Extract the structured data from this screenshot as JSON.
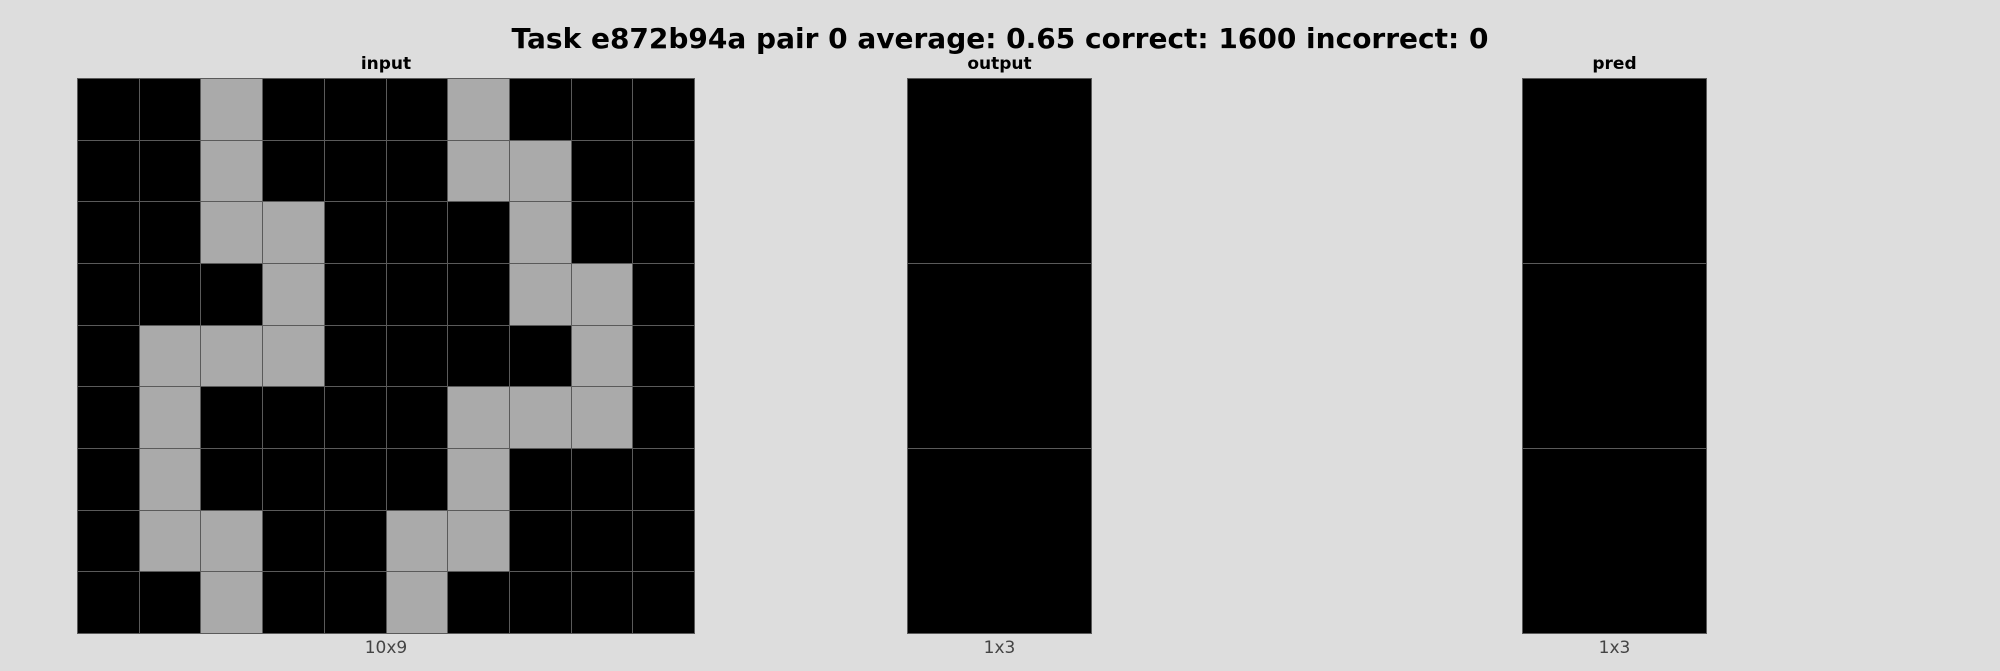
{
  "title": "Task e872b94a pair 0 average: 0.65 correct: 1600 incorrect: 0",
  "colors": {
    "0": "#000000",
    "5": "#aaaaaa",
    "background": "#dddddd",
    "gridline": "#5a5a5a"
  },
  "panels": [
    {
      "label": "input",
      "dims": "10x9",
      "grid": [
        [
          0,
          0,
          5,
          0,
          0,
          0,
          5,
          0,
          0,
          0
        ],
        [
          0,
          0,
          5,
          0,
          0,
          0,
          5,
          5,
          0,
          0
        ],
        [
          0,
          0,
          5,
          5,
          0,
          0,
          0,
          5,
          0,
          0
        ],
        [
          0,
          0,
          0,
          5,
          0,
          0,
          0,
          5,
          5,
          0
        ],
        [
          0,
          5,
          5,
          5,
          0,
          0,
          0,
          0,
          5,
          0
        ],
        [
          0,
          5,
          0,
          0,
          0,
          0,
          5,
          5,
          5,
          0
        ],
        [
          0,
          5,
          0,
          0,
          0,
          0,
          5,
          0,
          0,
          0
        ],
        [
          0,
          5,
          5,
          0,
          0,
          5,
          5,
          0,
          0,
          0
        ],
        [
          0,
          0,
          5,
          0,
          0,
          5,
          0,
          0,
          0,
          0
        ]
      ]
    },
    {
      "label": "output",
      "dims": "1x3",
      "grid": [
        [
          0
        ],
        [
          0
        ],
        [
          0
        ]
      ]
    },
    {
      "label": "pred",
      "dims": "1x3",
      "grid": [
        [
          0
        ],
        [
          0
        ],
        [
          0
        ]
      ]
    }
  ]
}
